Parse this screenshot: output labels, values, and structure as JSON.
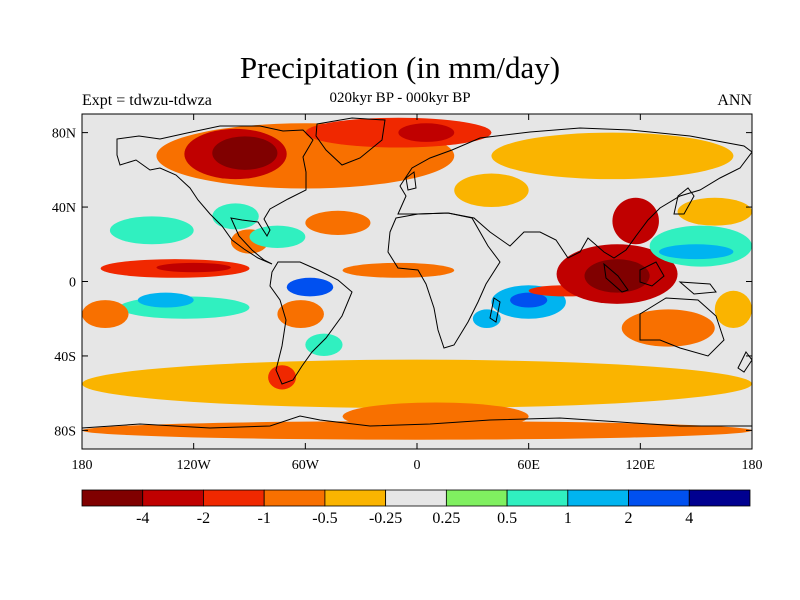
{
  "title": "Precipitation (in mm/day)",
  "subtitle": "020kyr BP - 000kyr BP",
  "left_label": "Expt = tdwzu-tdwza",
  "right_label": "ANN",
  "map": {
    "projection": "cylindrical-equidistant",
    "lon_range": [
      -180,
      180
    ],
    "lat_range": [
      -90,
      90
    ],
    "lon_ticks": [
      {
        "value": -180,
        "label": "180"
      },
      {
        "value": -120,
        "label": "120W"
      },
      {
        "value": -60,
        "label": "60W"
      },
      {
        "value": 0,
        "label": "0"
      },
      {
        "value": 60,
        "label": "60E"
      },
      {
        "value": 120,
        "label": "120E"
      },
      {
        "value": 180,
        "label": "180"
      }
    ],
    "lat_ticks": [
      {
        "value": 80,
        "label": "80N"
      },
      {
        "value": 40,
        "label": "40N"
      },
      {
        "value": 0,
        "label": "0"
      },
      {
        "value": -40,
        "label": "40S"
      },
      {
        "value": -80,
        "label": "80S"
      }
    ]
  },
  "colorbar": {
    "colors": [
      "#800000",
      "#c00000",
      "#f02800",
      "#f87000",
      "#fab400",
      "#e6e6e6",
      "#80f060",
      "#30f0c0",
      "#00b4f0",
      "#0050f0",
      "#000090"
    ],
    "labels": [
      "-4",
      "-2",
      "-1",
      "-0.5",
      "-0.25",
      "0.25",
      "0.5",
      "1",
      "2",
      "4"
    ]
  },
  "chart_data": {
    "type": "heatmap",
    "title": "Precipitation (in mm/day)",
    "subtitle": "020kyr BP - 000kyr BP",
    "x": "longitude",
    "y": "latitude",
    "xlim": [
      -180,
      180
    ],
    "ylim": [
      -90,
      90
    ],
    "levels": [
      -4,
      -2,
      -1,
      -0.5,
      -0.25,
      0.25,
      0.5,
      1,
      2,
      4
    ],
    "background_class": 5,
    "regions": [
      {
        "lon": [
          -180,
          180
        ],
        "lat": [
          -68,
          -42
        ],
        "class": 4
      },
      {
        "lon": [
          -140,
          20
        ],
        "lat": [
          50,
          85
        ],
        "class": 3
      },
      {
        "lon": [
          -125,
          -70
        ],
        "lat": [
          55,
          82
        ],
        "class": 1
      },
      {
        "lon": [
          -110,
          -75
        ],
        "lat": [
          60,
          78
        ],
        "class": 0
      },
      {
        "lon": [
          -60,
          40
        ],
        "lat": [
          72,
          88
        ],
        "class": 2
      },
      {
        "lon": [
          -10,
          20
        ],
        "lat": [
          75,
          85
        ],
        "class": 1
      },
      {
        "lon": [
          40,
          170
        ],
        "lat": [
          55,
          80
        ],
        "class": 4
      },
      {
        "lon": [
          20,
          60
        ],
        "lat": [
          40,
          58
        ],
        "class": 4
      },
      {
        "lon": [
          -165,
          -120
        ],
        "lat": [
          20,
          35
        ],
        "class": 7
      },
      {
        "lon": [
          -110,
          -85
        ],
        "lat": [
          28,
          42
        ],
        "class": 7
      },
      {
        "lon": [
          -100,
          -80
        ],
        "lat": [
          15,
          28
        ],
        "class": 3
      },
      {
        "lon": [
          -90,
          -60
        ],
        "lat": [
          18,
          30
        ],
        "class": 7
      },
      {
        "lon": [
          -60,
          -25
        ],
        "lat": [
          25,
          38
        ],
        "class": 3
      },
      {
        "lon": [
          -170,
          -90
        ],
        "lat": [
          2,
          12
        ],
        "class": 2
      },
      {
        "lon": [
          -140,
          -100
        ],
        "lat": [
          5,
          10
        ],
        "class": 1
      },
      {
        "lon": [
          -40,
          20
        ],
        "lat": [
          2,
          10
        ],
        "class": 3
      },
      {
        "lon": [
          -160,
          -90
        ],
        "lat": [
          -20,
          -8
        ],
        "class": 7
      },
      {
        "lon": [
          -150,
          -120
        ],
        "lat": [
          -14,
          -6
        ],
        "class": 8
      },
      {
        "lon": [
          -70,
          -45
        ],
        "lat": [
          -8,
          2
        ],
        "class": 9
      },
      {
        "lon": [
          -75,
          -50
        ],
        "lat": [
          -25,
          -10
        ],
        "class": 3
      },
      {
        "lon": [
          -60,
          -40
        ],
        "lat": [
          -40,
          -28
        ],
        "class": 7
      },
      {
        "lon": [
          -80,
          -65
        ],
        "lat": [
          -58,
          -45
        ],
        "class": 2
      },
      {
        "lon": [
          40,
          80
        ],
        "lat": [
          -20,
          -2
        ],
        "class": 8
      },
      {
        "lon": [
          50,
          70
        ],
        "lat": [
          -14,
          -6
        ],
        "class": 9
      },
      {
        "lon": [
          30,
          45
        ],
        "lat": [
          -25,
          -15
        ],
        "class": 8
      },
      {
        "lon": [
          60,
          100
        ],
        "lat": [
          -8,
          -2
        ],
        "class": 2
      },
      {
        "lon": [
          75,
          140
        ],
        "lat": [
          -12,
          20
        ],
        "class": 1
      },
      {
        "lon": [
          90,
          125
        ],
        "lat": [
          -6,
          12
        ],
        "class": 0
      },
      {
        "lon": [
          105,
          130
        ],
        "lat": [
          20,
          45
        ],
        "class": 1
      },
      {
        "lon": [
          125,
          180
        ],
        "lat": [
          8,
          30
        ],
        "class": 7
      },
      {
        "lon": [
          130,
          170
        ],
        "lat": [
          12,
          20
        ],
        "class": 8
      },
      {
        "lon": [
          140,
          180
        ],
        "lat": [
          30,
          45
        ],
        "class": 4
      },
      {
        "lon": [
          110,
          160
        ],
        "lat": [
          -35,
          -15
        ],
        "class": 3
      },
      {
        "lon": [
          -180,
          180
        ],
        "lat": [
          -85,
          -75
        ],
        "class": 3
      },
      {
        "lon": [
          -40,
          60
        ],
        "lat": [
          -80,
          -65
        ],
        "class": 3
      },
      {
        "lon": [
          160,
          180
        ],
        "lat": [
          -25,
          -5
        ],
        "class": 4
      },
      {
        "lon": [
          -180,
          -155
        ],
        "lat": [
          -25,
          -10
        ],
        "class": 3
      }
    ]
  }
}
